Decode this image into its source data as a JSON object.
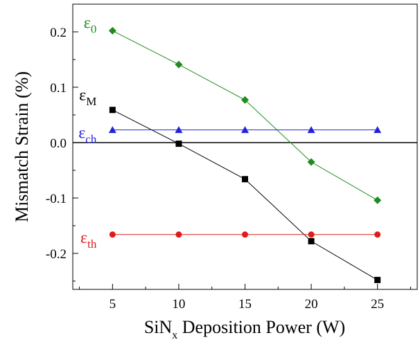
{
  "chart_data": {
    "type": "line",
    "xlabel": "SiN",
    "xlabel_sub": "x",
    "xlabel_rest": " Deposition Power (W)",
    "ylabel": "Mismatch Strain (%)",
    "xlim": [
      2,
      28
    ],
    "ylim": [
      -0.265,
      0.25
    ],
    "xticks": [
      5,
      10,
      15,
      20,
      25
    ],
    "xtick_labels": [
      "5",
      "10",
      "15",
      "20",
      "25"
    ],
    "yticks": [
      0.2,
      0.1,
      0.0,
      -0.1,
      -0.2
    ],
    "ytick_labels": [
      "0.2",
      "0.1",
      "0.0",
      "-0.1",
      "-0.2"
    ],
    "grid": false,
    "zero_line": true,
    "x": [
      5,
      10,
      15,
      20,
      25
    ],
    "series": [
      {
        "name": "ε0",
        "label_main": "ε",
        "label_sub": "0",
        "color": "#1e8c1e",
        "marker": "diamond",
        "values": [
          0.202,
          0.141,
          0.077,
          -0.035,
          -0.104
        ]
      },
      {
        "name": "εM",
        "label_main": "ε",
        "label_sub": "M",
        "color": "#000000",
        "marker": "square",
        "values": [
          0.059,
          -0.002,
          -0.066,
          -0.178,
          -0.248
        ]
      },
      {
        "name": "εch",
        "label_main": "ε",
        "label_sub": "ch",
        "color": "#2222dd",
        "marker": "triangle",
        "values": [
          0.023,
          0.023,
          0.023,
          0.023,
          0.023
        ]
      },
      {
        "name": "εth",
        "label_main": "ε",
        "label_sub": "th",
        "color": "#e01b1b",
        "marker": "circle",
        "values": [
          -0.166,
          -0.166,
          -0.166,
          -0.166,
          -0.166
        ]
      }
    ]
  }
}
